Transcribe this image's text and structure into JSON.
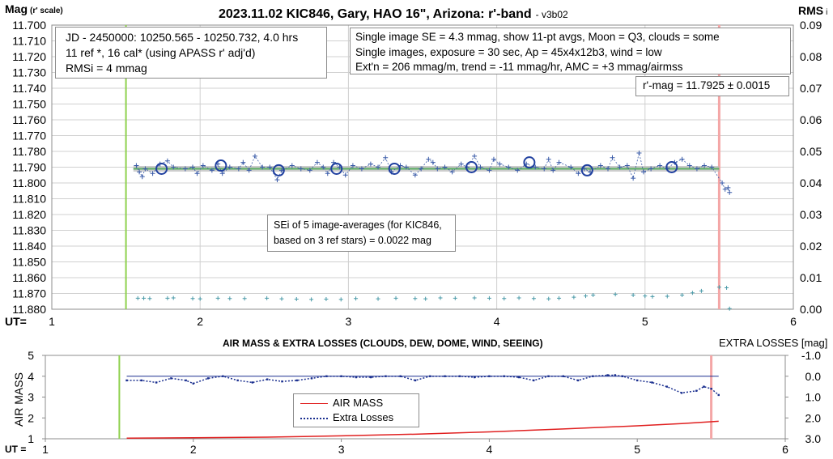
{
  "title_main": "2023.11.02 KIC846, Gary, HAO 16\", Arizona: r'-band",
  "title_version": "- v3b02",
  "y_label_main": "Mag",
  "y_label_sub": "(r' scale)",
  "y2_label_main": "RMS",
  "y2_label_sub": "i",
  "x_label_main": "UT=",
  "info_left": [
    "JD - 2450000: 10250.565 - 10250.732, 4.0 hrs",
    "11 ref *, 16 cal* (using APASS r' adj'd)",
    "RMSi = 4 mmag"
  ],
  "info_right": [
    "Single image SE = 4.3 mmag, show  11-pt avgs, Moon = Q3, clouds = some",
    "Single images, exposure = 30 sec, Ap = 45x4x12b3, wind = low",
    "Ext'n = 206 mmag/m, trend = -11  mmag/hr, AMC = +3 mmag/airmss"
  ],
  "rmag_box": "r'-mag = 11.7925 ± 0.0015",
  "sei_box": [
    "SEi of 5 image-averages (for KIC846,",
    "based on 3 ref stars) = 0.0022 mag"
  ],
  "lower_title": "AIR MASS & EXTRA LOSSES (CLOUDS, DEW, DOME, WIND, SEEING)",
  "lower_y_label": "AIR MASS",
  "lower_y2_label": "EXTRA LOSSES [mag]",
  "lower_x_label": "UT =",
  "legend": [
    "AIR MASS",
    "Extra Losses"
  ],
  "colors": {
    "mag_points": "#3a5ba8",
    "avg_circles": "#1f3f9f",
    "trend": "#5cae63",
    "trend_band": "#b8b8b8",
    "rms": "#4a9aa8",
    "start_line": "#8fd14f",
    "end_line": "#f4a6a6",
    "airmass": "#e02020",
    "losses": "#1a2f8f",
    "frame": "#8c8c8c",
    "grid": "#d0d0d0"
  },
  "chart_data": [
    {
      "type": "scatter",
      "title": "2023.11.02 KIC846, Gary, HAO 16\", Arizona: r'-band",
      "xlabel": "UT=",
      "ylabel": "Mag (r' scale)",
      "y2label": "RMS i",
      "xlim": [
        1,
        6
      ],
      "ylim": [
        11.7,
        11.88
      ],
      "y_inverted": true,
      "y2lim": [
        0,
        0.09
      ],
      "grid": true,
      "x_ticks": [
        "1",
        "2",
        "3",
        "4",
        "5",
        "6"
      ],
      "y_ticks": [
        "11.700",
        "11.710",
        "11.720",
        "11.730",
        "11.740",
        "11.750",
        "11.760",
        "11.770",
        "11.780",
        "11.790",
        "11.800",
        "11.810",
        "11.820",
        "11.830",
        "11.840",
        "11.850",
        "11.860",
        "11.870",
        "11.880"
      ],
      "y2_ticks": [
        "0.00",
        "0.01",
        "0.02",
        "0.03",
        "0.04",
        "0.05",
        "0.06",
        "0.07",
        "0.08",
        "0.09"
      ],
      "start_ut": 1.5,
      "end_ut": 5.5,
      "series": [
        {
          "values": [
            [
              1.57,
              11.789
            ],
            [
              1.59,
              11.793
            ],
            [
              1.61,
              11.796
            ],
            [
              1.63,
              11.791
            ],
            [
              1.68,
              11.794
            ],
            [
              1.73,
              11.788
            ],
            [
              1.78,
              11.786
            ],
            [
              1.82,
              11.79
            ],
            [
              1.9,
              11.791
            ],
            [
              1.95,
              11.79
            ],
            [
              1.98,
              11.794
            ],
            [
              2.02,
              11.789
            ],
            [
              2.08,
              11.792
            ],
            [
              2.12,
              11.788
            ],
            [
              2.15,
              11.794
            ],
            [
              2.2,
              11.79
            ],
            [
              2.26,
              11.791
            ],
            [
              2.29,
              11.787
            ],
            [
              2.33,
              11.792
            ],
            [
              2.37,
              11.783
            ],
            [
              2.42,
              11.79
            ],
            [
              2.47,
              11.79
            ],
            [
              2.52,
              11.798
            ],
            [
              2.55,
              11.792
            ],
            [
              2.62,
              11.789
            ],
            [
              2.68,
              11.791
            ],
            [
              2.74,
              11.792
            ],
            [
              2.79,
              11.787
            ],
            [
              2.83,
              11.79
            ],
            [
              2.86,
              11.794
            ],
            [
              2.9,
              11.787
            ],
            [
              2.94,
              11.79
            ],
            [
              2.98,
              11.795
            ],
            [
              3.03,
              11.789
            ],
            [
              3.09,
              11.791
            ],
            [
              3.15,
              11.788
            ],
            [
              3.2,
              11.79
            ],
            [
              3.25,
              11.784
            ],
            [
              3.29,
              11.793
            ],
            [
              3.35,
              11.789
            ],
            [
              3.39,
              11.79
            ],
            [
              3.45,
              11.795
            ],
            [
              3.49,
              11.791
            ],
            [
              3.54,
              11.785
            ],
            [
              3.57,
              11.787
            ],
            [
              3.6,
              11.791
            ],
            [
              3.65,
              11.79
            ],
            [
              3.7,
              11.793
            ],
            [
              3.76,
              11.788
            ],
            [
              3.8,
              11.79
            ],
            [
              3.85,
              11.783
            ],
            [
              3.89,
              11.79
            ],
            [
              3.95,
              11.792
            ],
            [
              3.98,
              11.785
            ],
            [
              4.02,
              11.788
            ],
            [
              4.08,
              11.79
            ],
            [
              4.14,
              11.792
            ],
            [
              4.2,
              11.788
            ],
            [
              4.26,
              11.79
            ],
            [
              4.32,
              11.791
            ],
            [
              4.35,
              11.785
            ],
            [
              4.38,
              11.792
            ],
            [
              4.42,
              11.787
            ],
            [
              4.5,
              11.79
            ],
            [
              4.55,
              11.794
            ],
            [
              4.59,
              11.791
            ],
            [
              4.63,
              11.793
            ],
            [
              4.7,
              11.789
            ],
            [
              4.75,
              11.791
            ],
            [
              4.78,
              11.784
            ],
            [
              4.83,
              11.79
            ],
            [
              4.88,
              11.789
            ],
            [
              4.92,
              11.797
            ],
            [
              4.96,
              11.781
            ],
            [
              4.99,
              11.793
            ],
            [
              5.04,
              11.791
            ],
            [
              5.1,
              11.789
            ],
            [
              5.15,
              11.791
            ],
            [
              5.2,
              11.787
            ],
            [
              5.25,
              11.785
            ],
            [
              5.3,
              11.789
            ],
            [
              5.35,
              11.791
            ],
            [
              5.4,
              11.789
            ],
            [
              5.45,
              11.79
            ],
            [
              5.52,
              11.8
            ],
            [
              5.54,
              11.804
            ],
            [
              5.56,
              11.803
            ],
            [
              5.57,
              11.806
            ]
          ]
        },
        {
          "values": [
            [
              1.74,
              11.791
            ],
            [
              2.14,
              11.789
            ],
            [
              2.53,
              11.792
            ],
            [
              2.92,
              11.791
            ],
            [
              3.31,
              11.791
            ],
            [
              3.83,
              11.79
            ],
            [
              4.22,
              11.787
            ],
            [
              4.61,
              11.792
            ],
            [
              5.18,
              11.79
            ]
          ]
        },
        {
          "values": [
            [
              1.55,
              11.791
            ],
            [
              5.5,
              11.791
            ]
          ]
        },
        {
          "values": [
            [
              1.58,
              0.0035
            ],
            [
              1.62,
              0.0035
            ],
            [
              1.66,
              0.0034
            ],
            [
              1.78,
              0.0035
            ],
            [
              1.82,
              0.0036
            ],
            [
              1.95,
              0.0034
            ],
            [
              2.0,
              0.0033
            ],
            [
              2.12,
              0.0035
            ],
            [
              2.2,
              0.0034
            ],
            [
              2.3,
              0.0034
            ],
            [
              2.45,
              0.0035
            ],
            [
              2.55,
              0.0033
            ],
            [
              2.65,
              0.0032
            ],
            [
              2.75,
              0.0031
            ],
            [
              2.85,
              0.0032
            ],
            [
              2.95,
              0.0031
            ],
            [
              3.05,
              0.0034
            ],
            [
              3.2,
              0.0033
            ],
            [
              3.32,
              0.0035
            ],
            [
              3.45,
              0.0034
            ],
            [
              3.52,
              0.0033
            ],
            [
              3.62,
              0.0036
            ],
            [
              3.72,
              0.0035
            ],
            [
              3.85,
              0.0036
            ],
            [
              3.95,
              0.0035
            ],
            [
              4.05,
              0.0034
            ],
            [
              4.15,
              0.0036
            ],
            [
              4.25,
              0.0034
            ],
            [
              4.35,
              0.0033
            ],
            [
              4.42,
              0.0035
            ],
            [
              4.52,
              0.0038
            ],
            [
              4.6,
              0.0042
            ],
            [
              4.65,
              0.0045
            ],
            [
              4.8,
              0.0047
            ],
            [
              4.92,
              0.0045
            ],
            [
              5.0,
              0.0042
            ],
            [
              5.05,
              0.004
            ],
            [
              5.15,
              0.0041
            ],
            [
              5.25,
              0.0045
            ],
            [
              5.32,
              0.0052
            ],
            [
              5.38,
              0.0058
            ],
            [
              5.5,
              0.007
            ],
            [
              5.55,
              0.0068
            ],
            [
              5.57,
              0.0002
            ]
          ]
        }
      ]
    },
    {
      "type": "line",
      "title": "AIR MASS & EXTRA LOSSES (CLOUDS, DEW, DOME, WIND, SEEING)",
      "xlabel": "UT =",
      "ylabel": "AIR MASS",
      "y2label": "EXTRA LOSSES [mag]",
      "xlim": [
        1,
        6
      ],
      "ylim": [
        1,
        5
      ],
      "y2lim": [
        -1.0,
        3.0
      ],
      "y2_inverted": true,
      "x_ticks": [
        "1",
        "2",
        "3",
        "4",
        "5",
        "6"
      ],
      "y_ticks": [
        "1",
        "2",
        "3",
        "4",
        "5"
      ],
      "y2_ticks": [
        "-1.0",
        "0.0",
        "1.0",
        "2.0",
        "3.0"
      ],
      "start_ut": 1.5,
      "end_ut": 5.5,
      "series": [
        {
          "name": "AIR MASS",
          "x": [
            1.55,
            1.8,
            2.0,
            2.5,
            3.0,
            3.5,
            4.0,
            4.5,
            5.0,
            5.3,
            5.55
          ],
          "values": [
            1.03,
            1.04,
            1.05,
            1.08,
            1.14,
            1.22,
            1.33,
            1.47,
            1.62,
            1.73,
            1.84
          ]
        },
        {
          "name": "Extra Losses",
          "x": [
            1.55,
            1.65,
            1.75,
            1.85,
            1.95,
            2.0,
            2.1,
            2.2,
            2.3,
            2.4,
            2.5,
            2.6,
            2.7,
            2.8,
            2.9,
            3.0,
            3.1,
            3.2,
            3.3,
            3.4,
            3.5,
            3.6,
            3.7,
            3.8,
            3.9,
            4.0,
            4.1,
            4.2,
            4.3,
            4.4,
            4.5,
            4.6,
            4.7,
            4.8,
            4.85,
            4.9,
            5.0,
            5.1,
            5.2,
            5.3,
            5.4,
            5.45,
            5.5,
            5.55
          ],
          "values": [
            0.2,
            0.2,
            0.3,
            0.1,
            0.2,
            0.35,
            0.1,
            0.0,
            0.2,
            0.3,
            0.15,
            0.25,
            0.2,
            0.1,
            0.0,
            0.0,
            0.05,
            0.05,
            0.0,
            0.0,
            0.2,
            0.0,
            0.0,
            0.0,
            0.05,
            0.0,
            0.0,
            0.05,
            0.2,
            0.0,
            0.0,
            0.2,
            0.0,
            -0.05,
            -0.05,
            0.0,
            0.2,
            0.3,
            0.5,
            0.8,
            0.7,
            0.5,
            0.6,
            0.9
          ]
        }
      ]
    }
  ]
}
